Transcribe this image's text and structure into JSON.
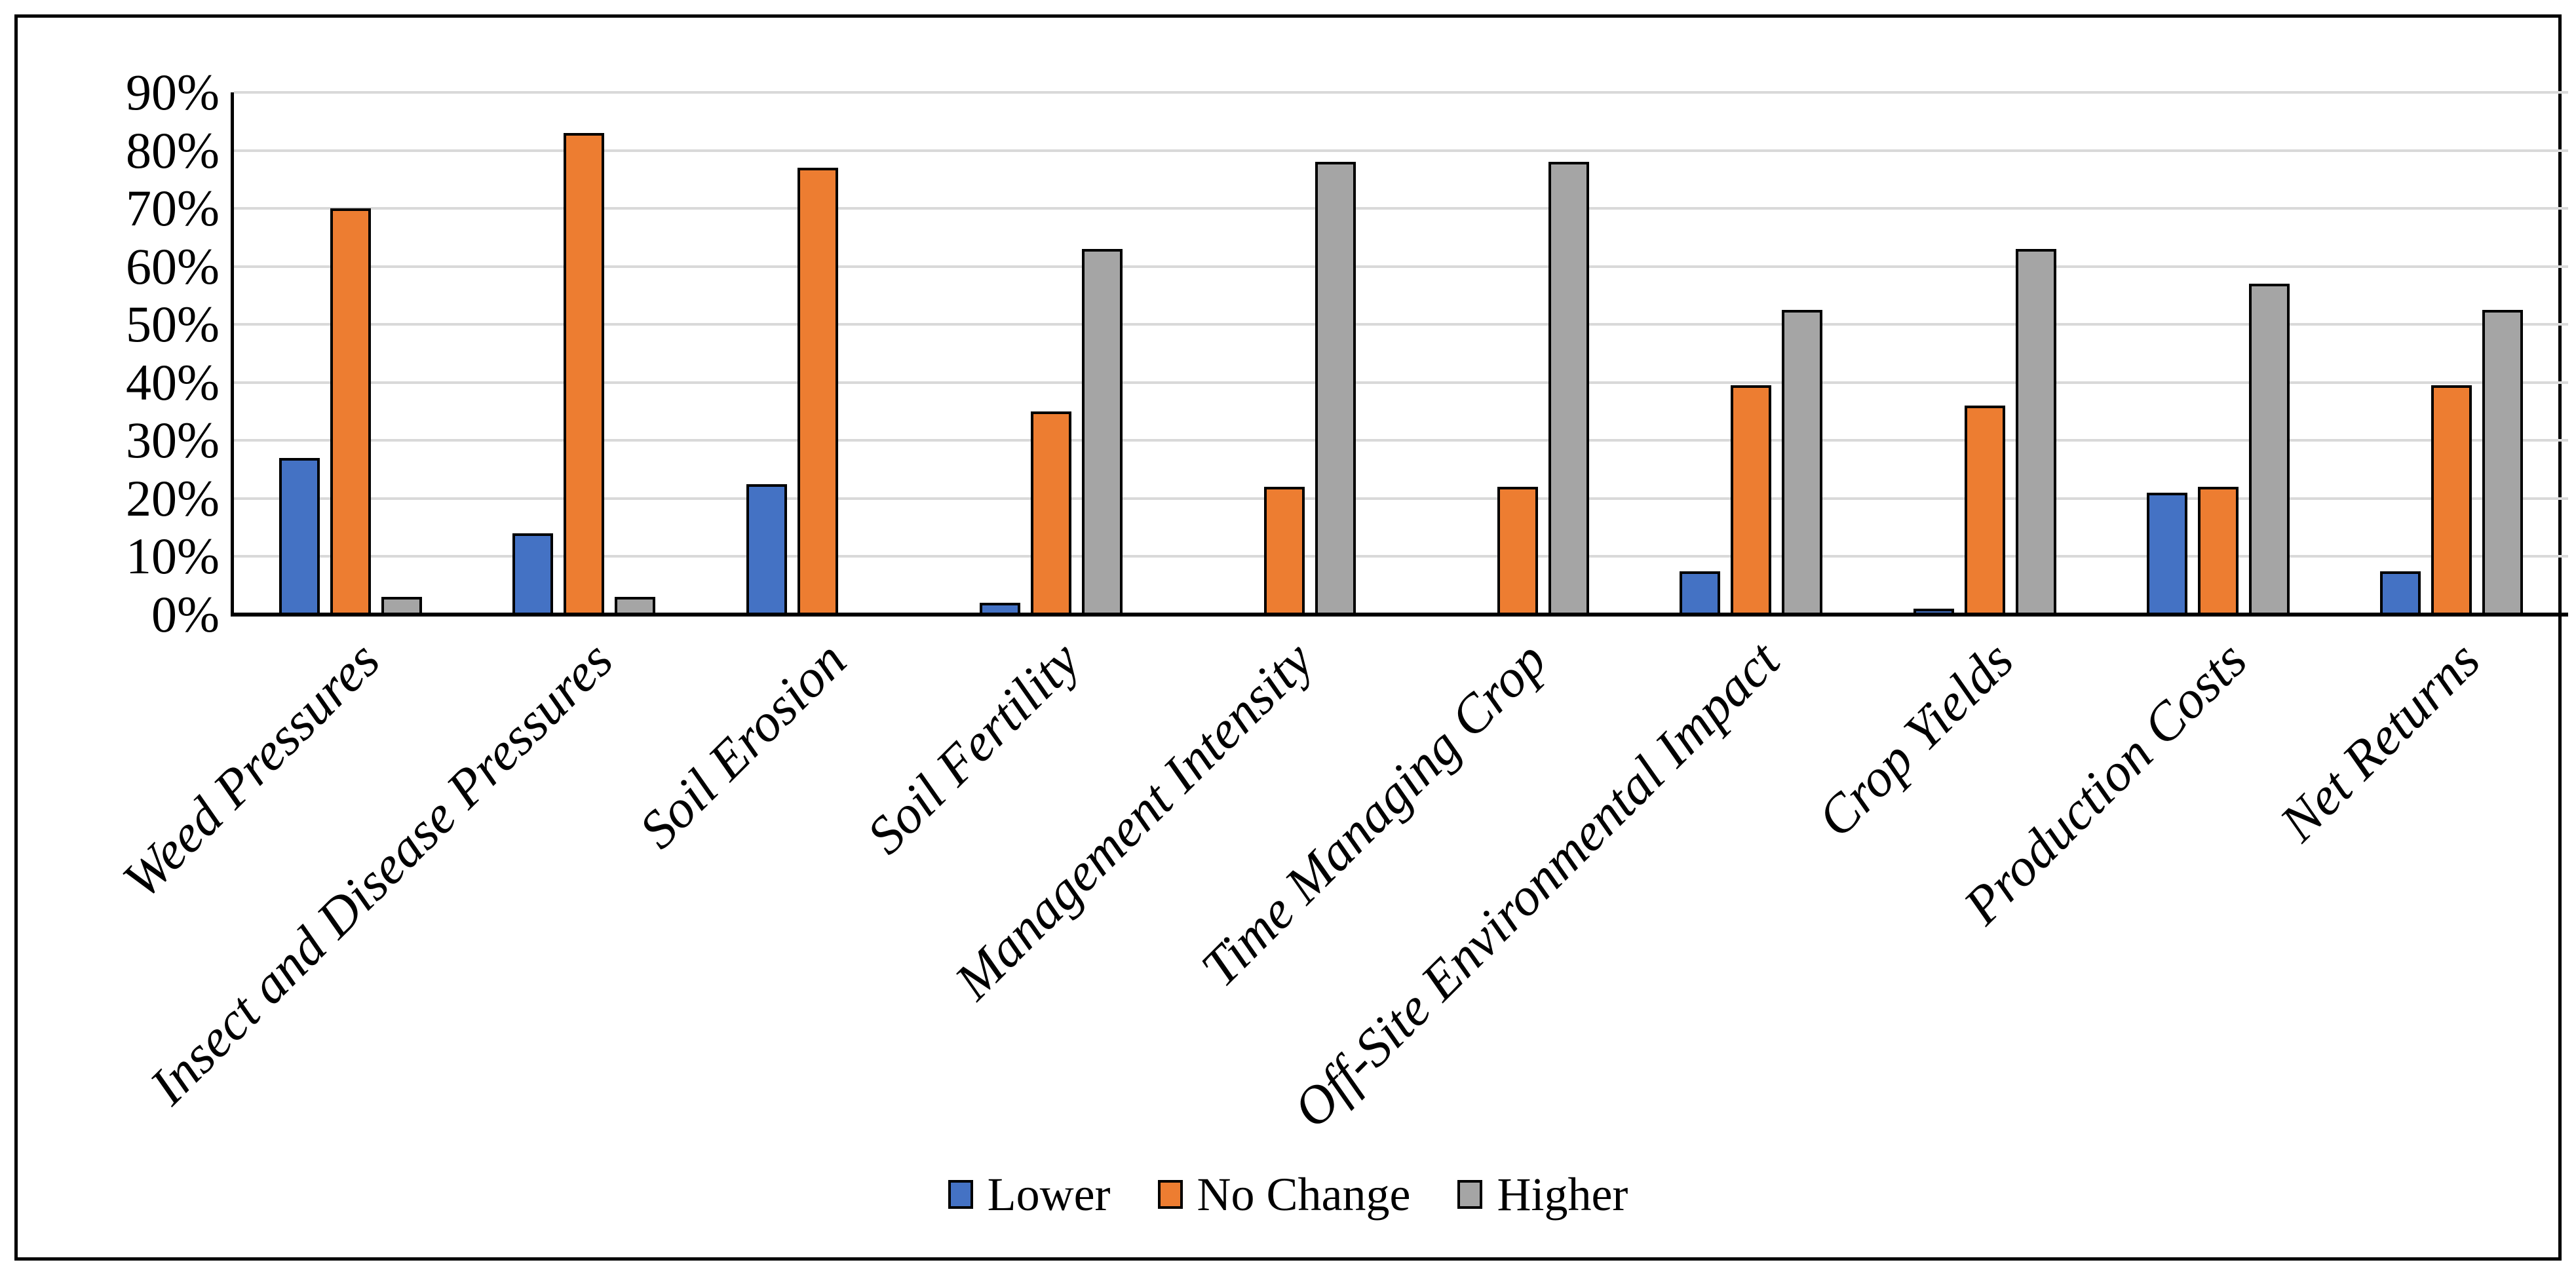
{
  "figure": {
    "background": "#FFFFFF",
    "border_color": "#000000"
  },
  "chart_data": {
    "type": "bar",
    "title": "",
    "xlabel": "",
    "ylabel": "",
    "categories": [
      "Weed Pressures",
      "Insect and Disease Pressures",
      "Soil Erosion",
      "Soil Fertility",
      "Management Intensity",
      "Time Managing Crop",
      "Off-Site Environmental Impact",
      "Crop Yields",
      "Production Costs",
      "Net Returns"
    ],
    "series": [
      {
        "name": "Lower",
        "color": "#4472C4",
        "values": [
          27,
          14,
          22.5,
          2,
          0,
          0,
          7.5,
          1,
          21,
          7.5
        ]
      },
      {
        "name": "No Change",
        "color": "#ED7D31",
        "values": [
          70,
          83,
          77,
          35,
          22,
          22,
          39.5,
          36,
          22,
          39.5
        ]
      },
      {
        "name": "Higher",
        "color": "#A5A5A5",
        "values": [
          3,
          3,
          0,
          63,
          78,
          78,
          52.5,
          63,
          57,
          52.5
        ]
      }
    ],
    "ylim": [
      0,
      90
    ],
    "ytick_step": 10,
    "ytick_labels": [
      "0%",
      "10%",
      "20%",
      "30%",
      "40%",
      "50%",
      "60%",
      "70%",
      "80%",
      "90%"
    ],
    "grid": true,
    "gridline_color": "#D9D9D9",
    "axis_color": "#000000",
    "bar_border_color": "#000000",
    "legend_position": "bottom",
    "legend_labels": [
      "Lower",
      "No Change",
      "Higher"
    ]
  }
}
